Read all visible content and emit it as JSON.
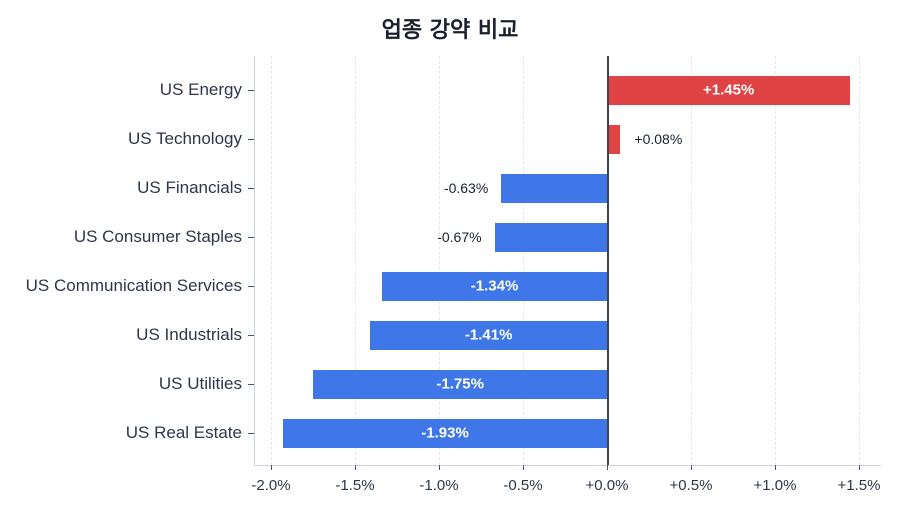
{
  "title": "업종 강약 비교",
  "colors": {
    "positive": "#e04343",
    "negative": "#3f76e8"
  },
  "axis": {
    "x_ticks": [
      "-2.0%",
      "-1.5%",
      "-1.0%",
      "-0.5%",
      "+0.0%",
      "+0.5%",
      "+1.0%",
      "+1.5%"
    ]
  },
  "chart_data": {
    "type": "bar",
    "orientation": "horizontal",
    "title": "업종 강약 비교",
    "xlabel": "",
    "ylabel": "",
    "xlim": [
      -2.1,
      1.62
    ],
    "grid": "x dashed",
    "categories": [
      "US Energy",
      "US Technology",
      "US Financials",
      "US Consumer Staples",
      "US Communication Services",
      "US Industrials",
      "US Utilities",
      "US Real Estate"
    ],
    "values": [
      1.45,
      0.08,
      -0.63,
      -0.67,
      -1.34,
      -1.41,
      -1.75,
      -1.93
    ],
    "labels": [
      "+1.45%",
      "+0.08%",
      "-0.63%",
      "-0.67%",
      "-1.34%",
      "-1.41%",
      "-1.75%",
      "-1.93%"
    ],
    "x_tick_labels": [
      "-2.0%",
      "-1.5%",
      "-1.0%",
      "-0.5%",
      "+0.0%",
      "+0.5%",
      "+1.0%",
      "+1.5%"
    ],
    "x_tick_values": [
      -2.0,
      -1.5,
      -1.0,
      -0.5,
      0.0,
      0.5,
      1.0,
      1.5
    ]
  },
  "rows": [
    {
      "label": "US Energy",
      "value": 1.45,
      "text": "+1.45%"
    },
    {
      "label": "US Technology",
      "value": 0.08,
      "text": "+0.08%"
    },
    {
      "label": "US Financials",
      "value": -0.63,
      "text": "-0.63%"
    },
    {
      "label": "US Consumer Staples",
      "value": -0.67,
      "text": "-0.67%"
    },
    {
      "label": "US Communication Services",
      "value": -1.34,
      "text": "-1.34%"
    },
    {
      "label": "US Industrials",
      "value": -1.41,
      "text": "-1.41%"
    },
    {
      "label": "US Utilities",
      "value": -1.75,
      "text": "-1.75%"
    },
    {
      "label": "US Real Estate",
      "value": -1.93,
      "text": "-1.93%"
    }
  ]
}
